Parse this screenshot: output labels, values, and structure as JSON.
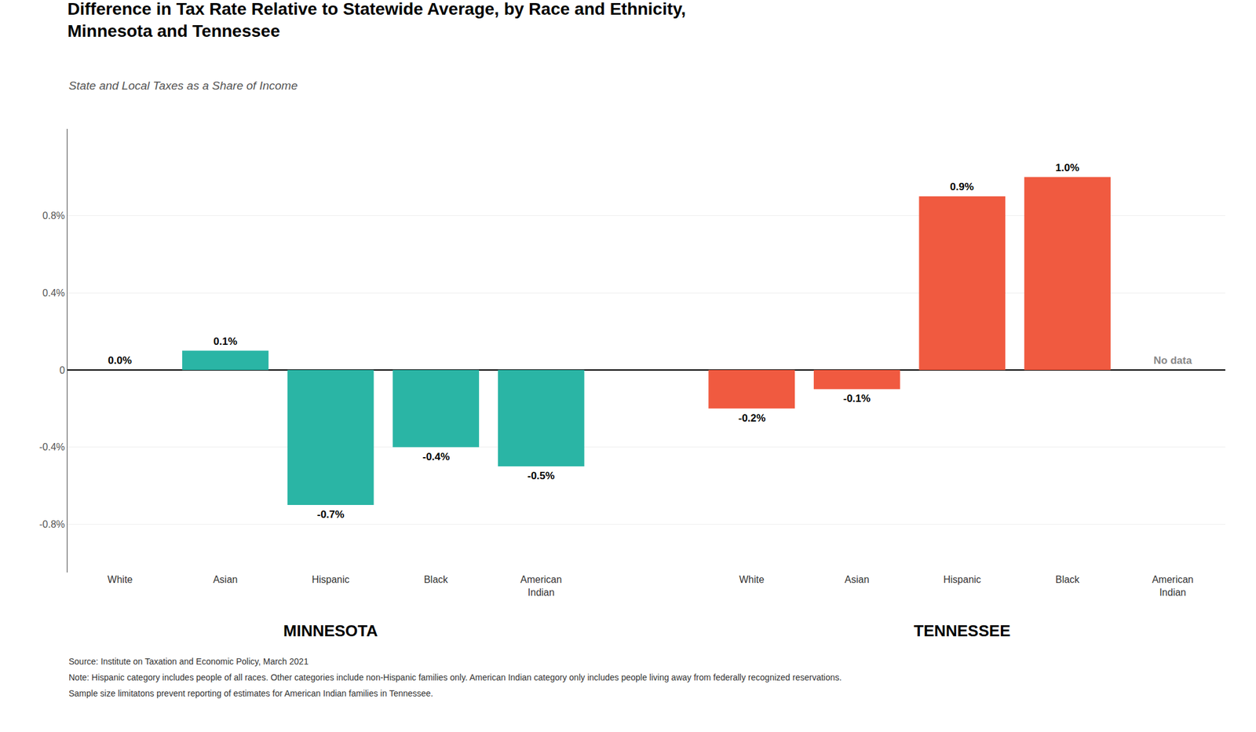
{
  "chart_data": {
    "type": "bar",
    "title": "Difference in Tax Rate Relative to Statewide Average, by Race and Ethnicity,\nMinnesota and Tennessee",
    "subtitle": "State and Local Taxes as a Share of Income",
    "categories": [
      "White",
      "Asian",
      "Hispanic",
      "Black",
      "American\nIndian",
      null,
      "White",
      "Asian",
      "Hispanic",
      "Black",
      "American\nIndian"
    ],
    "series": [
      {
        "name": "MINNESOTA",
        "color": "#2ab5a5",
        "values": [
          0.0,
          0.1,
          -0.7,
          -0.4,
          -0.5,
          null,
          null,
          null,
          null,
          null,
          null
        ],
        "value_labels": [
          "0.0%",
          "0.1%",
          "-0.7%",
          "-0.4%",
          "-0.5%",
          null,
          null,
          null,
          null,
          null,
          null
        ]
      },
      {
        "name": "TENNESSEE",
        "color": "#f05a40",
        "values": [
          null,
          null,
          null,
          null,
          null,
          null,
          -0.2,
          -0.1,
          0.9,
          1.0,
          null
        ],
        "value_labels": [
          null,
          null,
          null,
          null,
          null,
          null,
          "-0.2%",
          "-0.1%",
          "0.9%",
          "1.0%",
          "No data"
        ]
      }
    ],
    "ylim": [
      -1.05,
      1.25
    ],
    "yticks": [
      {
        "value": -0.8,
        "label": "-0.8%"
      },
      {
        "value": -0.4,
        "label": "-0.4%"
      },
      0,
      {
        "value": 0.4,
        "label": "0.4%"
      },
      {
        "value": 0.8,
        "label": "0.8%"
      }
    ],
    "grid": true,
    "data_labels": true,
    "annotations": [
      "Source: Institute on Taxation and Economic Policy, March 2021",
      "Note: Hispanic category includes people of all races. Other categories include non-Hispanic families only. American Indian category only includes people living away from federally recognized reservations.",
      "Sample size limitatons prevent reporting of estimates for American Indian families in Tennessee."
    ]
  }
}
